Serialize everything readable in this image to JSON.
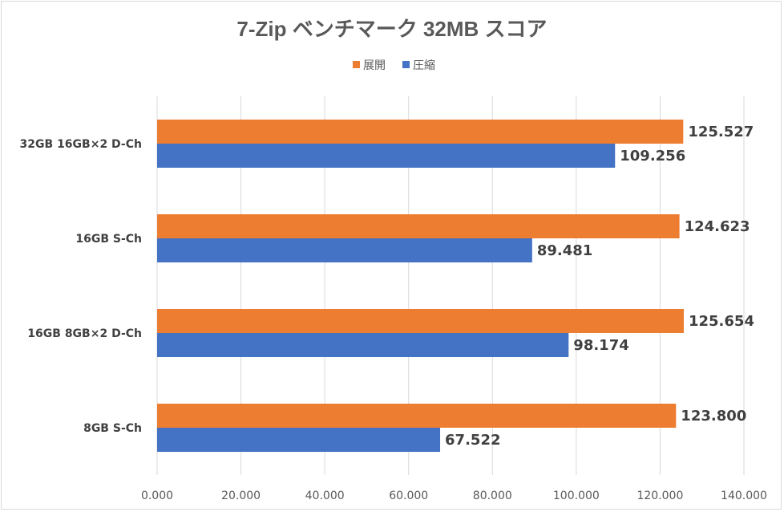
{
  "chart_data": {
    "type": "bar",
    "orientation": "horizontal",
    "title": "7-Zip ベンチマーク 32MB スコア",
    "categories": [
      "32GB 16GB×2 D-Ch",
      "16GB S-Ch",
      "16GB 8GB×2 D-Ch",
      "8GB S-Ch"
    ],
    "series": [
      {
        "name": "展開",
        "color": "#ed7d31",
        "values": [
          125.527,
          124.623,
          125.654,
          123.8
        ],
        "labels": [
          "125.527",
          "124.623",
          "125.654",
          "123.800"
        ]
      },
      {
        "name": "圧縮",
        "color": "#4472c4",
        "values": [
          109.256,
          89.481,
          98.174,
          67.522
        ],
        "labels": [
          "109.256",
          "89.481",
          "98.174",
          "67.522"
        ]
      }
    ],
    "xlim": [
      0,
      140
    ],
    "xticks": [
      0,
      20,
      40,
      60,
      80,
      100,
      120,
      140
    ],
    "xtick_labels": [
      "0.000",
      "20.000",
      "40.000",
      "60.000",
      "80.000",
      "100.000",
      "120.000",
      "140.000"
    ],
    "xlabel": "",
    "ylabel": "",
    "grid": true,
    "legend_position": "top"
  }
}
